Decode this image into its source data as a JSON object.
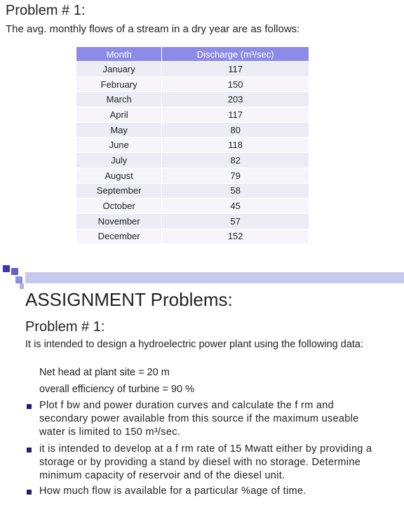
{
  "top": {
    "title": "Problem # 1:",
    "intro": "The avg. monthly flows of a stream in a dry year are as follows:"
  },
  "table": {
    "header": [
      "Month",
      "Discharge (m³/sec)"
    ],
    "rows": [
      [
        "January",
        "117"
      ],
      [
        "February",
        "150"
      ],
      [
        "March",
        "203"
      ],
      [
        "April",
        "117"
      ],
      [
        "May",
        "80"
      ],
      [
        "June",
        "118"
      ],
      [
        "July",
        "82"
      ],
      [
        "August",
        "79"
      ],
      [
        "September",
        "58"
      ],
      [
        "October",
        "45"
      ],
      [
        "November",
        "57"
      ],
      [
        "December",
        "152"
      ]
    ]
  },
  "assignment": {
    "heading": "ASSIGNMENT Problems:",
    "problem": "Problem # 1:",
    "intro": "It is intended to design a hydroelectric power plant using the following data:",
    "givens": [
      "Net head at plant site = 20 m",
      "overall efficiency of turbine = 90 %"
    ],
    "bullets": [
      "Plot f bw and power duration curves and calculate the f rm and secondary power available from this source if the maximum useable water is limited to 150 m³/sec.",
      "it is intended to develop at a f rm rate of 15 Mwatt either by providing a storage or by providing a stand by diesel with no storage. Determine minimum capacity of reservoir and of the diesel unit.",
      "How much flow is available for a particular %age of time."
    ]
  }
}
